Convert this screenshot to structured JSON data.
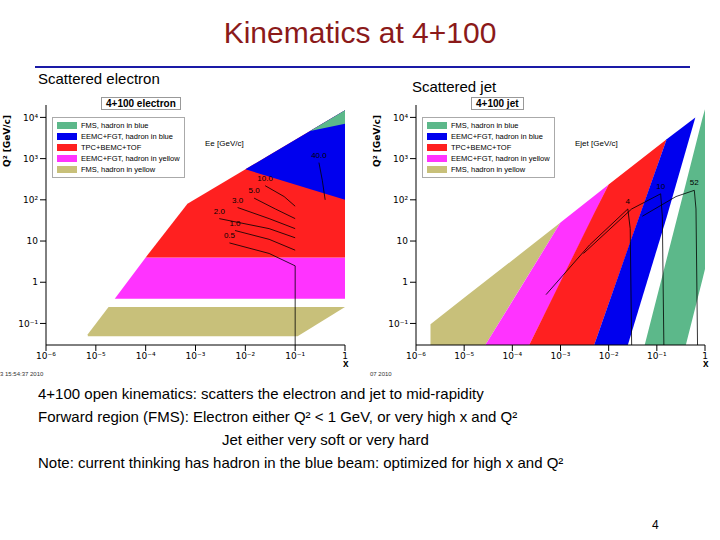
{
  "title": "Kinematics at 4+100",
  "panel_titles": [
    "Scattered electron",
    "Scattered jet"
  ],
  "notes": [
    "4+100 open kinematics: scatters the electron and jet to mid-rapidity",
    "Forward region (FMS): Electron either Q² < 1 GeV, or very high x and Q²",
    "Jet either very soft or very hard",
    "Note: current thinking has hadron in the blue beam: optimized for high x and Q²"
  ],
  "page": 4,
  "chart_data": [
    {
      "type": "area",
      "title": "4+100 electron",
      "stamp": "3 15:54:37 2010",
      "x_label": "x",
      "y_label": "Q² [GeV/c]",
      "log": true,
      "legend": "upper left",
      "xlim": [
        1e-06,
        1
      ],
      "ylim": [
        0.03,
        20000
      ],
      "xticks": [
        {
          "value": 1e-06,
          "label": "10⁻⁶"
        },
        {
          "value": 1e-05,
          "label": "10⁻⁵"
        },
        {
          "value": 0.0001,
          "label": "10⁻⁴"
        },
        {
          "value": 0.001,
          "label": "10⁻³"
        },
        {
          "value": 0.01,
          "label": "10⁻²"
        },
        {
          "value": 0.1,
          "label": "10⁻¹"
        },
        1
      ],
      "yticks": [
        {
          "value": 0.1,
          "label": "10⁻¹"
        },
        1,
        10,
        {
          "value": 100,
          "label": "10²"
        },
        {
          "value": 1000,
          "label": "10³"
        },
        {
          "value": 10000,
          "label": "10⁴"
        }
      ],
      "series": [
        {
          "name": "FMS, hadron in blue",
          "color": "#5cb88a",
          "x": [
            0.2,
            1
          ],
          "values": [
            [
              4700,
              4700
            ],
            [
              7000,
              15000
            ]
          ]
        },
        {
          "name": "EEMC+FGT, hadron in blue",
          "color": "#0000ee",
          "x": [
            0.01,
            1
          ],
          "values": [
            [
              550,
              550
            ],
            [
              100,
              15000
            ]
          ]
        },
        {
          "name": "TPC+BEMC+TOF",
          "color": "#ff2020",
          "x": [
            0.0001,
            0.00069,
            1
          ],
          "values": [
            [
              4,
              4
            ],
            [
              4,
              80
            ],
            [
              4,
              15000
            ]
          ]
        },
        {
          "name": "EEMC+FGT, hadron in yellow",
          "color": "#ff33ff",
          "x": [
            2.4e-05,
            0.0001,
            1
          ],
          "values": [
            [
              0.4,
              0.4
            ],
            [
              0.4,
              4
            ],
            [
              0.4,
              4
            ]
          ]
        },
        {
          "name": "FMS, hadron in yellow",
          "color": "#c8c07a",
          "x": [
            6.9e-06,
            1.8e-05,
            0.112,
            1
          ],
          "values": [
            [
              0.049,
              0.055
            ],
            [
              0.049,
              0.25
            ],
            [
              0.049,
              0.25
            ],
            [
              0.25,
              0.25
            ]
          ]
        }
      ],
      "contours": {
        "label": "Ee [GeV/c]",
        "lines": [
          {
            "label": "0.5",
            "x": [
              0.0048,
              0.03,
              0.1,
              0.1
            ],
            "values": [
              9,
              5,
              2.5,
              0.03
            ]
          },
          {
            "label": "1.0",
            "x": [
              0.0062,
              0.03,
              0.1
            ],
            "values": [
              18,
              11,
              6
            ]
          },
          {
            "label": "2.0",
            "x": [
              0.003,
              0.03,
              0.1
            ],
            "values": [
              35,
              20,
              12
            ]
          },
          {
            "label": "3.0",
            "x": [
              0.007,
              0.03,
              0.1
            ],
            "values": [
              65,
              35,
              20
            ]
          },
          {
            "label": "5.0",
            "x": [
              0.015,
              0.04,
              0.1
            ],
            "values": [
              110,
              60,
              35
            ]
          },
          {
            "label": "10.0",
            "x": [
              0.025,
              0.06,
              0.1
            ],
            "values": [
              220,
              120,
              70
            ]
          },
          {
            "label": "40.0",
            "x": [
              0.3,
              0.35,
              0.4
            ],
            "values": [
              800,
              300,
              100
            ]
          }
        ]
      }
    },
    {
      "type": "area",
      "title": "4+100 jet",
      "stamp": "07 2010",
      "x_label": "x",
      "y_label": "Q² [GeV/c]",
      "log": true,
      "legend": "upper left",
      "xlim": [
        1e-06,
        1
      ],
      "ylim": [
        0.03,
        20000
      ],
      "xticks": [
        {
          "value": 1e-06,
          "label": "10⁻⁶"
        },
        {
          "value": 1e-05,
          "label": "10⁻⁵"
        },
        {
          "value": 0.0001,
          "label": "10⁻⁴"
        },
        {
          "value": 0.001,
          "label": "10⁻³"
        },
        {
          "value": 0.01,
          "label": "10⁻²"
        },
        {
          "value": 0.1,
          "label": "10⁻¹"
        },
        1
      ],
      "yticks": [
        {
          "value": 0.1,
          "label": "10⁻¹"
        },
        1,
        10,
        {
          "value": 100,
          "label": "10²"
        },
        {
          "value": 1000,
          "label": "10³"
        },
        {
          "value": 10000,
          "label": "10⁴"
        }
      ],
      "series": [
        {
          "name": "FMS, hadron in blue",
          "color": "#5cb88a",
          "x": [
            0.056,
            0.4,
            0.89,
            1
          ],
          "values": [
            [
              0.03,
              0.03
            ],
            [
              0.03,
              245
            ],
            [
              1.2,
              9800
            ],
            [
              2.1,
              15800
            ]
          ]
        },
        {
          "name": "EEMC+FGT, hadron in blue",
          "color": "#0000ee",
          "x": [
            0.005,
            0.025,
            0.16,
            0.63
          ],
          "values": [
            [
              0.03,
              0.03
            ],
            [
              0.03,
              6.5
            ],
            [
              38,
              2950
            ],
            [
              10000,
              10000
            ]
          ]
        },
        {
          "name": "TPC+BEMC+TOF",
          "color": "#ff2020",
          "x": [
            0.000224,
            0.005,
            0.01,
            0.16
          ],
          "values": [
            [
              0.03,
              0.03
            ],
            [
              0.03,
              47
            ],
            [
              0.3,
              234
            ],
            [
              2950,
              2950
            ]
          ]
        },
        {
          "name": "EEMC+FGT, hadron in yellow",
          "color": "#ff33ff",
          "x": [
            2.75e-05,
            0.000224,
            0.001,
            0.01
          ],
          "values": [
            [
              0.03,
              0.03
            ],
            [
              0.03,
              1.6
            ],
            [
              1,
              28
            ],
            [
              234,
              234
            ]
          ]
        },
        {
          "name": "FMS, hadron in yellow",
          "color": "#c8c07a",
          "x": [
            2e-06,
            1e-05,
            2.75e-05,
            0.001
          ],
          "values": [
            [
              0.03,
              0.095
            ],
            [
              0.03,
              0.42
            ],
            [
              0.03,
              1.05
            ],
            [
              28,
              28
            ]
          ]
        }
      ],
      "contours": {
        "label": "Ejet [GeV/c]",
        "lines": [
          {
            "label": "4",
            "x": [
              0.0005,
              0.004,
              0.025,
              0.028,
              0.03
            ],
            "values": [
              0.5,
              8,
              60,
              20,
              0.03
            ]
          },
          {
            "label": "10",
            "x": [
              0.003,
              0.03,
              0.12,
              0.13,
              0.14
            ],
            "values": [
              5,
              60,
              140,
              40,
              0.03
            ]
          },
          {
            "label": "52",
            "x": [
              0.05,
              0.25,
              0.6,
              0.65,
              0.7
            ],
            "values": [
              40,
              120,
              170,
              60,
              0.03
            ]
          }
        ]
      }
    }
  ]
}
